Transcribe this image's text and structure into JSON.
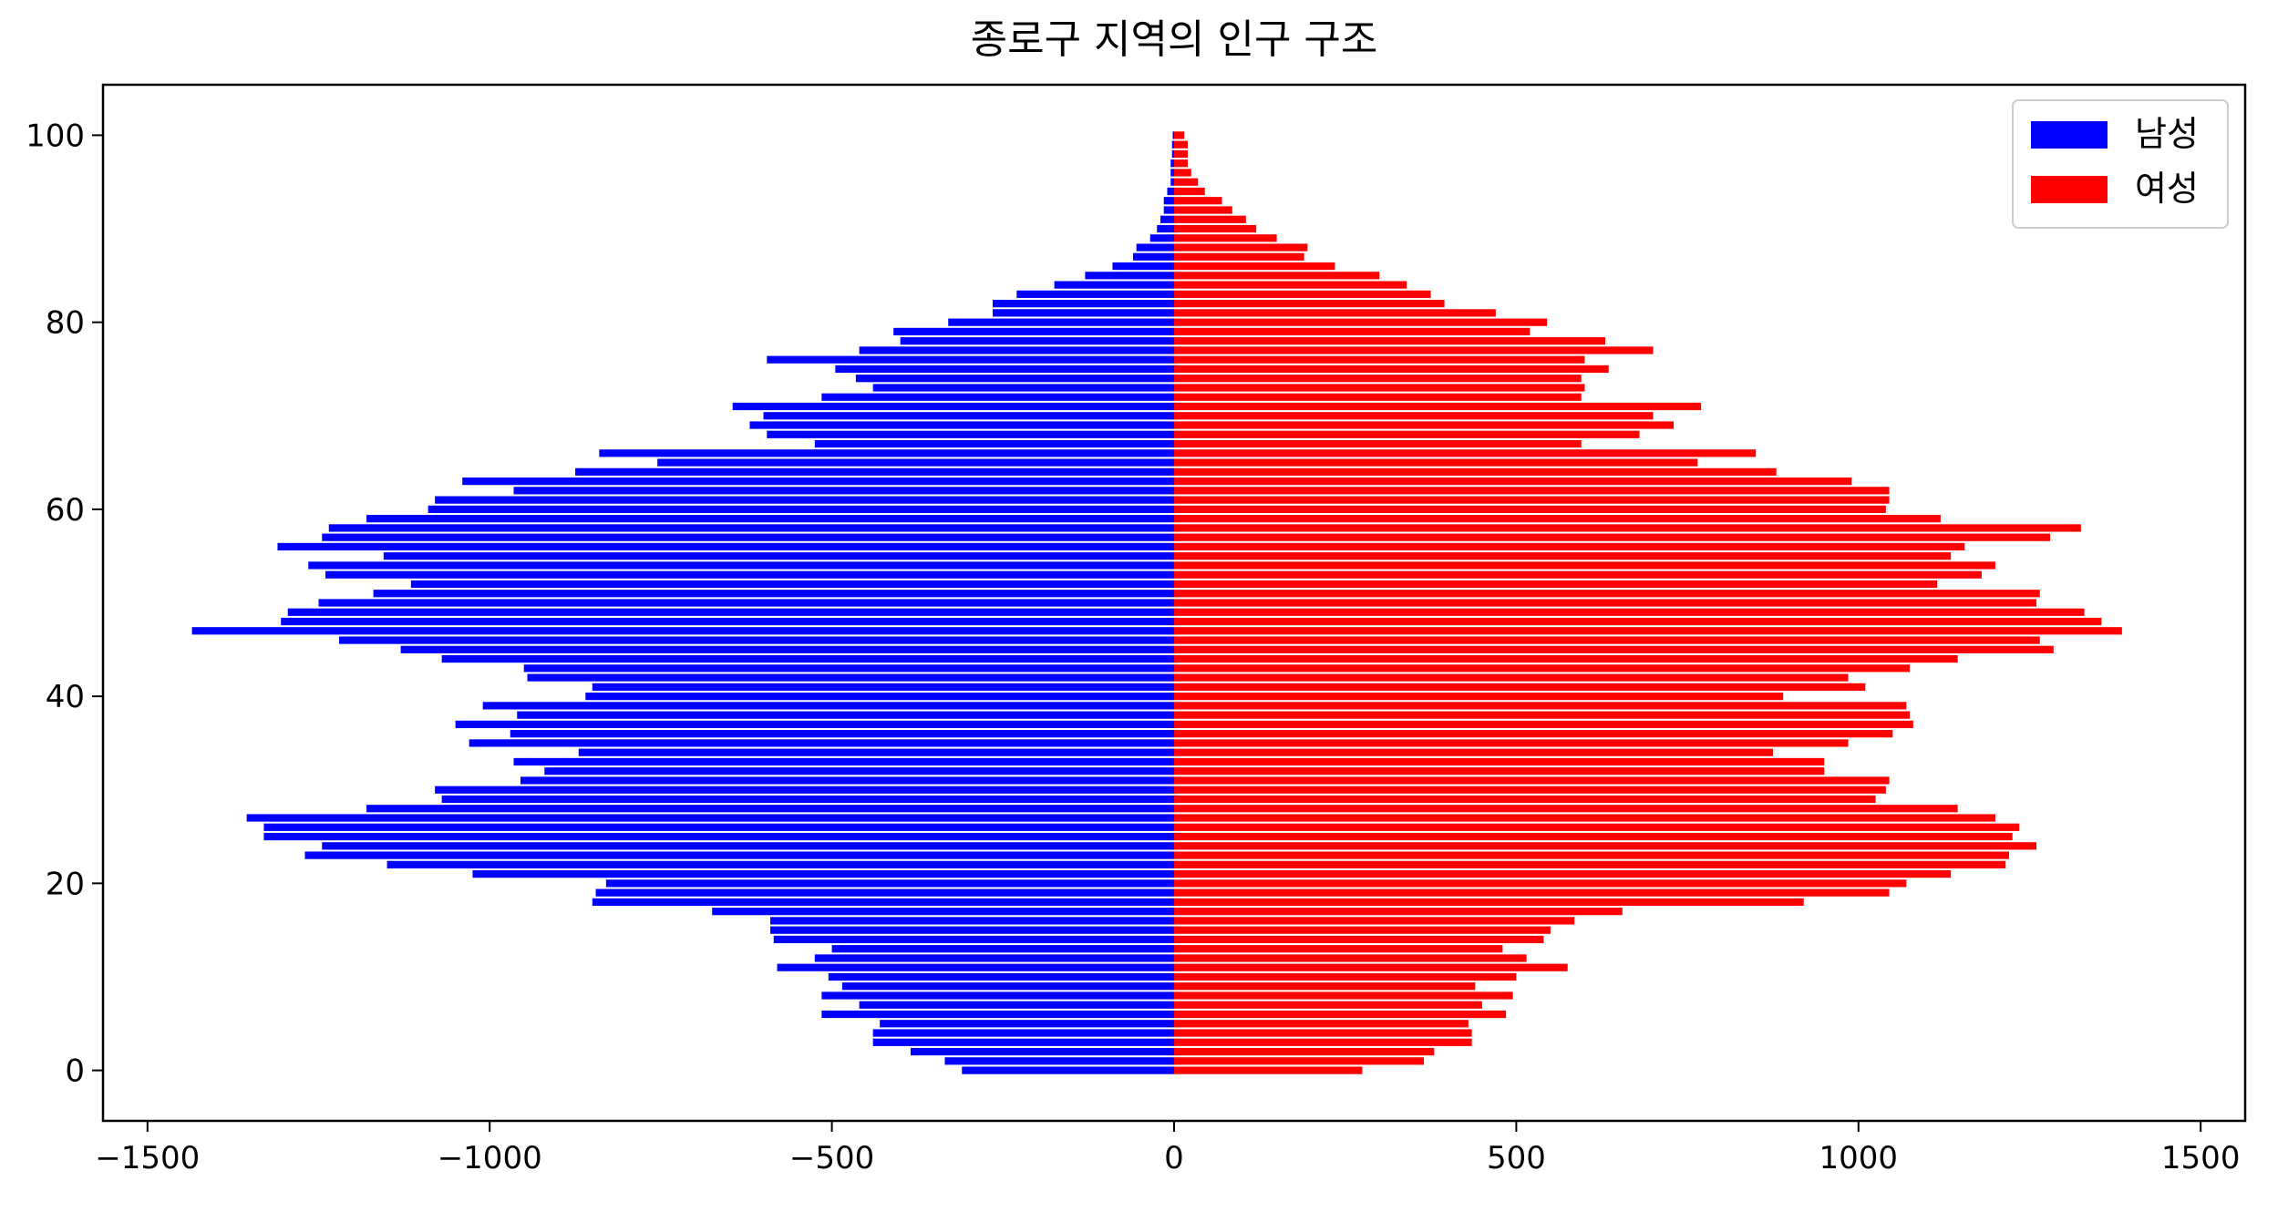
{
  "chart_data": {
    "type": "bar",
    "orientation": "horizontal",
    "title": "종로구 지역의 인구 구조",
    "xlabel": "",
    "ylabel": "",
    "xlim": [
      -1500,
      1500
    ],
    "ylim": [
      0,
      100
    ],
    "x_tick_labels": [
      "−1500",
      "−1000",
      "−500",
      "0",
      "500",
      "1000",
      "1500"
    ],
    "x_ticks": [
      -1500,
      -1000,
      -500,
      0,
      500,
      1000,
      1500
    ],
    "y_ticks": [
      0,
      20,
      40,
      60,
      80,
      100
    ],
    "y_tick_labels": [
      "0",
      "20",
      "40",
      "60",
      "80",
      "100"
    ],
    "legend_position": "top-right",
    "categories": [
      0,
      1,
      2,
      3,
      4,
      5,
      6,
      7,
      8,
      9,
      10,
      11,
      12,
      13,
      14,
      15,
      16,
      17,
      18,
      19,
      20,
      21,
      22,
      23,
      24,
      25,
      26,
      27,
      28,
      29,
      30,
      31,
      32,
      33,
      34,
      35,
      36,
      37,
      38,
      39,
      40,
      41,
      42,
      43,
      44,
      45,
      46,
      47,
      48,
      49,
      50,
      51,
      52,
      53,
      54,
      55,
      56,
      57,
      58,
      59,
      60,
      61,
      62,
      63,
      64,
      65,
      66,
      67,
      68,
      69,
      70,
      71,
      72,
      73,
      74,
      75,
      76,
      77,
      78,
      79,
      80,
      81,
      82,
      83,
      84,
      85,
      86,
      87,
      88,
      89,
      90,
      91,
      92,
      93,
      94,
      95,
      96,
      97,
      98,
      99,
      100
    ],
    "series": [
      {
        "name": "남성",
        "color": "#0000ff",
        "values": [
          -310,
          -335,
          -385,
          -440,
          -440,
          -430,
          -515,
          -460,
          -515,
          -485,
          -505,
          -580,
          -525,
          -500,
          -585,
          -590,
          -590,
          -675,
          -850,
          -845,
          -830,
          -1025,
          -1150,
          -1270,
          -1245,
          -1330,
          -1330,
          -1355,
          -1180,
          -1070,
          -1080,
          -955,
          -920,
          -965,
          -870,
          -1030,
          -970,
          -1050,
          -960,
          -1010,
          -860,
          -850,
          -945,
          -950,
          -1070,
          -1130,
          -1220,
          -1435,
          -1305,
          -1295,
          -1250,
          -1170,
          -1115,
          -1240,
          -1265,
          -1155,
          -1310,
          -1245,
          -1235,
          -1180,
          -1090,
          -1080,
          -965,
          -1040,
          -875,
          -755,
          -840,
          -525,
          -595,
          -620,
          -600,
          -645,
          -515,
          -440,
          -465,
          -495,
          -595,
          -460,
          -400,
          -410,
          -330,
          -265,
          -265,
          -230,
          -175,
          -130,
          -90,
          -60,
          -55,
          -35,
          -25,
          -20,
          -15,
          -15,
          -10,
          -5,
          -5,
          -5,
          -3,
          -3,
          -2
        ]
      },
      {
        "name": "여성",
        "color": "#ff0000",
        "values": [
          275,
          365,
          380,
          435,
          435,
          430,
          485,
          450,
          495,
          440,
          500,
          575,
          515,
          480,
          540,
          550,
          585,
          655,
          920,
          1045,
          1070,
          1135,
          1215,
          1220,
          1260,
          1225,
          1235,
          1200,
          1145,
          1025,
          1040,
          1045,
          950,
          950,
          875,
          985,
          1050,
          1080,
          1075,
          1070,
          890,
          1010,
          985,
          1075,
          1145,
          1285,
          1265,
          1385,
          1355,
          1330,
          1260,
          1265,
          1115,
          1180,
          1200,
          1135,
          1155,
          1280,
          1325,
          1120,
          1040,
          1045,
          1045,
          990,
          880,
          765,
          850,
          595,
          680,
          730,
          700,
          770,
          595,
          600,
          595,
          635,
          600,
          700,
          630,
          520,
          545,
          470,
          395,
          375,
          340,
          300,
          235,
          190,
          195,
          150,
          120,
          105,
          85,
          70,
          45,
          35,
          25,
          20,
          20,
          20,
          15
        ]
      }
    ]
  }
}
